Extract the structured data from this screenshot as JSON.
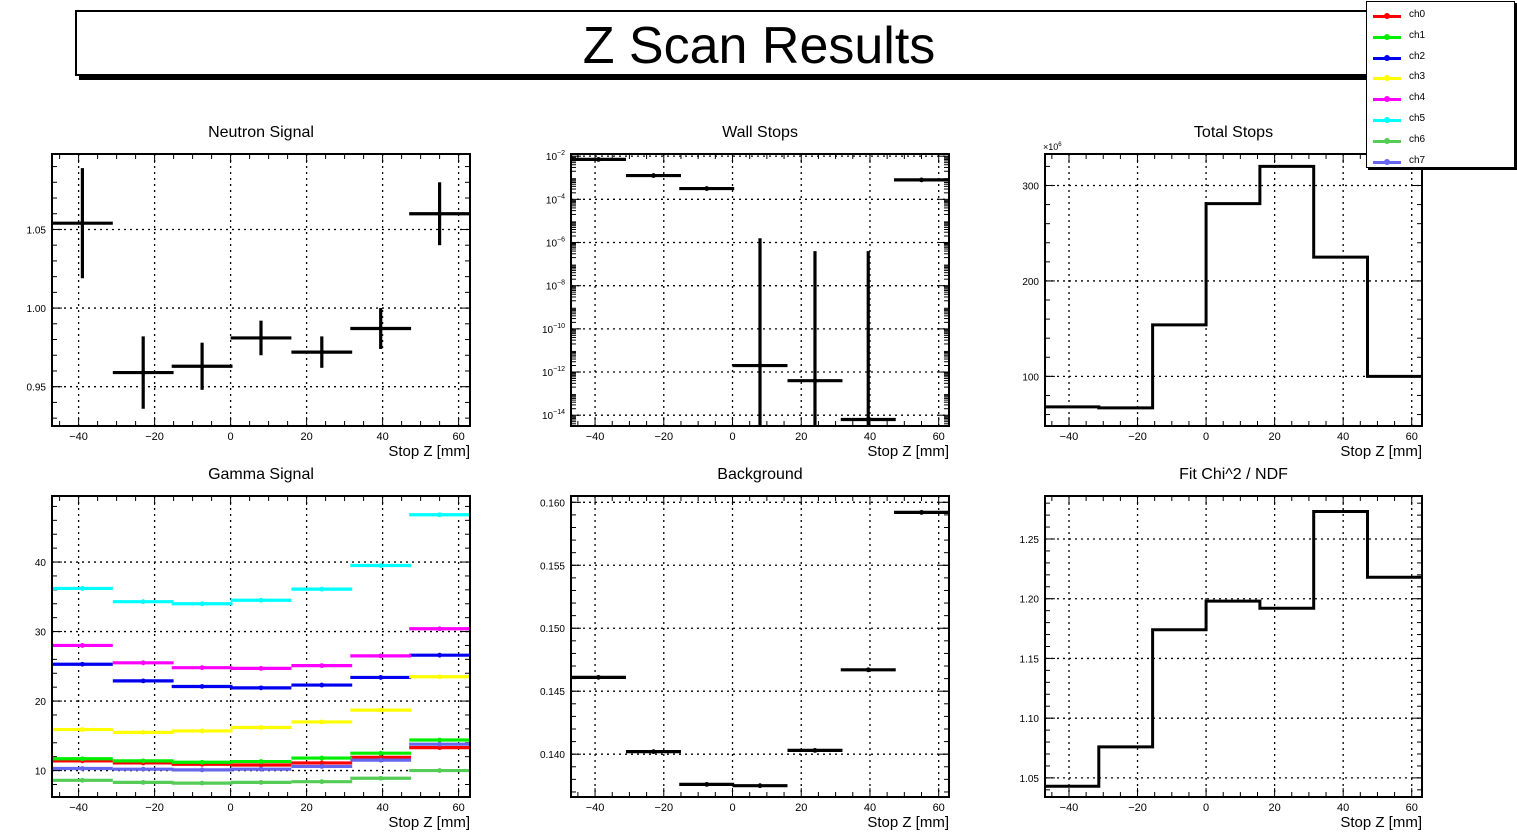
{
  "title": "Z Scan Results",
  "legend": [
    {
      "label": "ch0",
      "color": "#ff0000"
    },
    {
      "label": "ch1",
      "color": "#00ee00"
    },
    {
      "label": "ch2",
      "color": "#0000ee"
    },
    {
      "label": "ch3",
      "color": "#ffff00"
    },
    {
      "label": "ch4",
      "color": "#ff00ff"
    },
    {
      "label": "ch5",
      "color": "#00ffff"
    },
    {
      "label": "ch6",
      "color": "#55cc55"
    },
    {
      "label": "ch7",
      "color": "#6666ee"
    }
  ],
  "chart_data": [
    {
      "id": "neutron",
      "type": "errorbar",
      "title": "Neutron Signal",
      "xlabel": "Stop Z [mm]",
      "ylabel": "",
      "xlim": [
        -47,
        63
      ],
      "ylim": [
        0.925,
        1.098
      ],
      "xticks": [
        -40,
        -20,
        0,
        20,
        40,
        60
      ],
      "yticks": [
        0.95,
        1.0,
        1.05
      ],
      "ytick_labels": [
        "0.95",
        "1.00",
        "1.05"
      ],
      "grid": true,
      "points": [
        {
          "x": -39,
          "xerr": 8,
          "y": 1.054,
          "yerr": 0.035
        },
        {
          "x": -23,
          "xerr": 8,
          "y": 0.959,
          "yerr": 0.023
        },
        {
          "x": -7.5,
          "xerr": 8,
          "y": 0.963,
          "yerr": 0.015
        },
        {
          "x": 8,
          "xerr": 8,
          "y": 0.981,
          "yerr": 0.011
        },
        {
          "x": 24,
          "xerr": 8,
          "y": 0.972,
          "yerr": 0.01
        },
        {
          "x": 39.5,
          "xerr": 8,
          "y": 0.987,
          "yerr": 0.013
        },
        {
          "x": 55,
          "xerr": 8,
          "y": 1.06,
          "yerr": 0.02
        }
      ]
    },
    {
      "id": "wall",
      "type": "errorbar",
      "title": "Wall Stops",
      "xlabel": "Stop Z [mm]",
      "ylabel": "",
      "scale_y": "log",
      "xlim": [
        -47,
        63
      ],
      "ylim_log10": [
        -14.5,
        -1.9
      ],
      "xticks": [
        -40,
        -20,
        0,
        20,
        40,
        60
      ],
      "yticks_log10": [
        -2,
        -4,
        -6,
        -8,
        -10,
        -12,
        -14
      ],
      "ytick_labels": [
        "-2",
        "-4",
        "-6",
        "-8",
        "-10",
        "-12",
        "-14"
      ],
      "ytick_base": "10",
      "grid": true,
      "points": [
        {
          "x": -39,
          "xerr": 8,
          "log10_y": -2.15,
          "log10_lo": -2.15,
          "log10_hi": -2.15
        },
        {
          "x": -23,
          "xerr": 8,
          "log10_y": -2.9,
          "log10_lo": -2.9,
          "log10_hi": -2.9
        },
        {
          "x": -7.5,
          "xerr": 8,
          "log10_y": -3.5,
          "log10_lo": -3.5,
          "log10_hi": -3.5
        },
        {
          "x": 8,
          "xerr": 8,
          "log10_y": -11.7,
          "log10_lo": -14.6,
          "log10_hi": -5.8
        },
        {
          "x": 24,
          "xerr": 8,
          "log10_y": -12.4,
          "log10_lo": -14.6,
          "log10_hi": -6.4
        },
        {
          "x": 39.5,
          "xerr": 8,
          "log10_y": -14.2,
          "log10_lo": -14.6,
          "log10_hi": -6.4
        },
        {
          "x": 55,
          "xerr": 8,
          "log10_y": -3.1,
          "log10_lo": -3.1,
          "log10_hi": -3.1
        }
      ]
    },
    {
      "id": "total",
      "type": "histogram",
      "title": "Total Stops",
      "xlabel": "Stop Z [mm]",
      "ylabel": "",
      "scale_note": "×10^6",
      "xlim": [
        -47,
        63
      ],
      "ylim": [
        48,
        333
      ],
      "xticks": [
        -40,
        -20,
        0,
        20,
        40,
        60
      ],
      "yticks": [
        100,
        200,
        300
      ],
      "ytick_labels": [
        "100",
        "200",
        "300"
      ],
      "grid": true,
      "bin_edges": [
        -47,
        -31.3,
        -15.6,
        0,
        15.7,
        31.4,
        47.1,
        63
      ],
      "values": [
        68,
        67,
        154,
        281,
        320,
        225,
        100
      ]
    },
    {
      "id": "gamma",
      "type": "errorbar",
      "title": "Gamma Signal",
      "xlabel": "Stop Z [mm]",
      "ylabel": "",
      "xlim": [
        -47,
        63
      ],
      "ylim": [
        6.2,
        49.5
      ],
      "xticks": [
        -40,
        -20,
        0,
        20,
        40,
        60
      ],
      "yticks": [
        10,
        20,
        30,
        40
      ],
      "ytick_labels": [
        "10",
        "20",
        "30",
        "40"
      ],
      "grid": true,
      "x": [
        -39,
        -23,
        -7.5,
        8,
        24,
        39.5,
        55
      ],
      "xerr": 8,
      "series": [
        {
          "name": "ch0",
          "color": "#ff0000",
          "values": [
            11.4,
            11.1,
            10.9,
            10.8,
            11.1,
            11.9,
            13.3
          ]
        },
        {
          "name": "ch1",
          "color": "#00ee00",
          "values": [
            11.7,
            11.4,
            11.2,
            11.3,
            11.8,
            12.5,
            14.4
          ]
        },
        {
          "name": "ch2",
          "color": "#0000ee",
          "values": [
            25.3,
            22.9,
            22.1,
            21.9,
            22.3,
            23.4,
            26.6
          ]
        },
        {
          "name": "ch3",
          "color": "#ffff00",
          "values": [
            15.9,
            15.5,
            15.7,
            16.2,
            17.0,
            18.7,
            23.5
          ]
        },
        {
          "name": "ch4",
          "color": "#ff00ff",
          "values": [
            28.0,
            25.5,
            24.8,
            24.7,
            25.1,
            26.5,
            30.4
          ]
        },
        {
          "name": "ch5",
          "color": "#00ffff",
          "values": [
            36.2,
            34.3,
            34.0,
            34.5,
            36.1,
            39.5,
            46.8
          ]
        },
        {
          "name": "ch6",
          "color": "#55cc55",
          "values": [
            8.6,
            8.3,
            8.2,
            8.3,
            8.4,
            8.9,
            10.0
          ]
        },
        {
          "name": "ch7",
          "color": "#6666ee",
          "values": [
            10.3,
            10.2,
            10.1,
            10.2,
            10.6,
            11.5,
            13.8
          ]
        }
      ]
    },
    {
      "id": "background",
      "type": "errorbar",
      "title": "Background",
      "xlabel": "Stop Z [mm]",
      "ylabel": "",
      "xlim": [
        -47,
        63
      ],
      "ylim": [
        0.1366,
        0.1605
      ],
      "xticks": [
        -40,
        -20,
        0,
        20,
        40,
        60
      ],
      "yticks": [
        0.14,
        0.145,
        0.15,
        0.155,
        0.16
      ],
      "ytick_labels": [
        "0.140",
        "0.145",
        "0.150",
        "0.155",
        "0.160"
      ],
      "grid": true,
      "points": [
        {
          "x": -39,
          "xerr": 8,
          "y": 0.1461,
          "yerr": 0
        },
        {
          "x": -23,
          "xerr": 8,
          "y": 0.1402,
          "yerr": 0
        },
        {
          "x": -7.5,
          "xerr": 8,
          "y": 0.1376,
          "yerr": 0
        },
        {
          "x": 8,
          "xerr": 8,
          "y": 0.1375,
          "yerr": 0
        },
        {
          "x": 24,
          "xerr": 8,
          "y": 0.1403,
          "yerr": 0
        },
        {
          "x": 39.5,
          "xerr": 8,
          "y": 0.1467,
          "yerr": 0
        },
        {
          "x": 55,
          "xerr": 8,
          "y": 0.1592,
          "yerr": 0
        }
      ]
    },
    {
      "id": "chi2",
      "type": "histogram",
      "title": "Fit Chi^2 / NDF",
      "xlabel": "Stop Z [mm]",
      "ylabel": "",
      "xlim": [
        -47,
        63
      ],
      "ylim": [
        1.034,
        1.286
      ],
      "xticks": [
        -40,
        -20,
        0,
        20,
        40,
        60
      ],
      "yticks": [
        1.05,
        1.1,
        1.15,
        1.2,
        1.25
      ],
      "ytick_labels": [
        "1.05",
        "1.10",
        "1.15",
        "1.20",
        "1.25"
      ],
      "grid": true,
      "bin_edges": [
        -47,
        -31.3,
        -15.6,
        0,
        15.7,
        31.4,
        47.1,
        63
      ],
      "values": [
        1.043,
        1.076,
        1.174,
        1.198,
        1.192,
        1.273,
        1.218
      ]
    }
  ]
}
